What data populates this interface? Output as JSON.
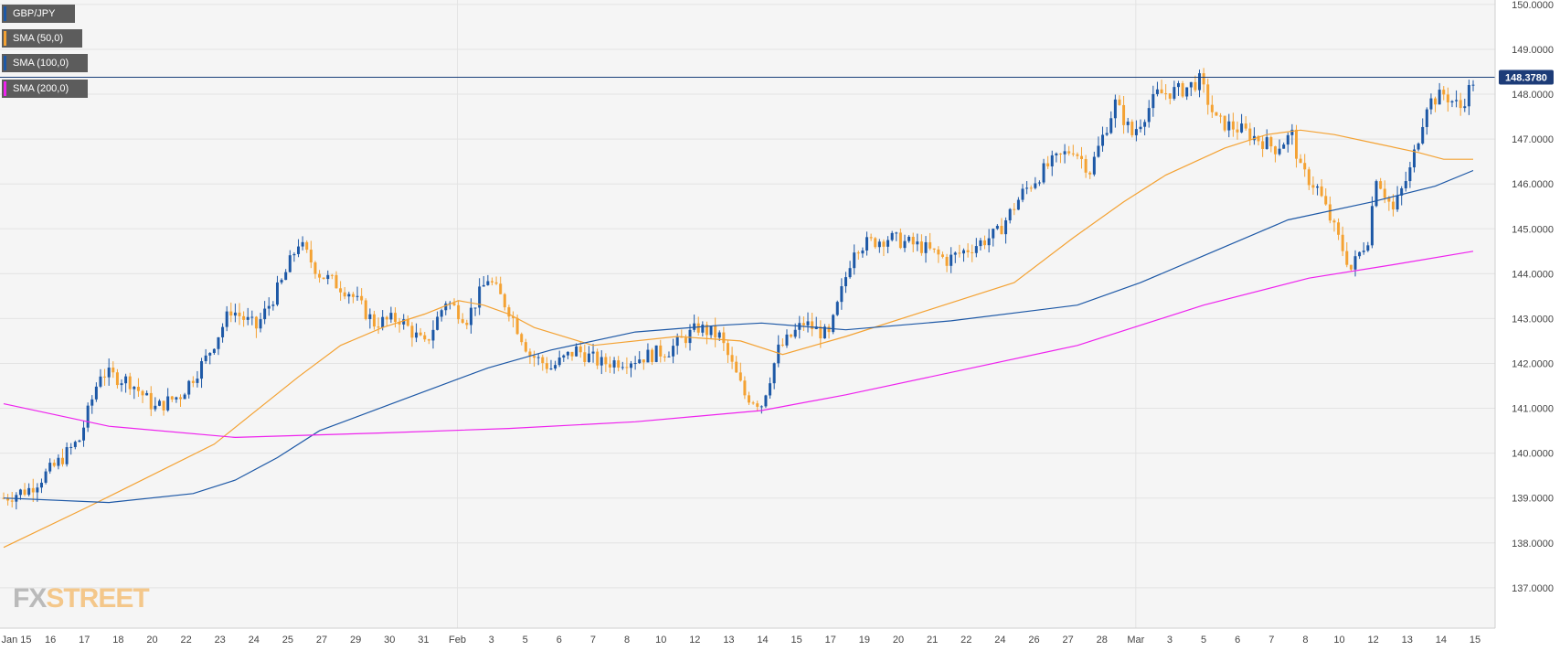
{
  "legend": {
    "symbol": "GBP/JPY",
    "sma50": "SMA (50,0)",
    "sma100": "SMA (100,0)",
    "sma200": "SMA (200,0)"
  },
  "colors": {
    "bullish": "#1d58a6",
    "bearish": "#f4a233",
    "sma50": "#f4a233",
    "sma100": "#1d58a6",
    "sma200": "#ee22ee",
    "price_line": "#1a3f7a",
    "price_label_bg": "#1d3c78"
  },
  "logo": {
    "fx": "FX",
    "street": "STREET"
  },
  "chart_data": {
    "type": "candlestick",
    "title": "",
    "x_ticks": [
      "Jan 15",
      "16",
      "17",
      "18",
      "20",
      "22",
      "23",
      "24",
      "25",
      "27",
      "29",
      "30",
      "31",
      "Feb",
      "3",
      "5",
      "6",
      "7",
      "8",
      "10",
      "12",
      "13",
      "14",
      "15",
      "17",
      "19",
      "20",
      "21",
      "22",
      "24",
      "26",
      "27",
      "28",
      "Mar",
      "3",
      "5",
      "6",
      "7",
      "8",
      "10",
      "12",
      "13",
      "14",
      "15"
    ],
    "y_ticks": [
      "150.0000",
      "149.0000",
      "148.0000",
      "147.0000",
      "146.0000",
      "145.0000",
      "144.0000",
      "143.0000",
      "142.0000",
      "141.0000",
      "140.0000",
      "139.0000",
      "138.0000",
      "137.0000"
    ],
    "ylim": [
      136.1,
      150.1
    ],
    "grid": true,
    "current_price": "148.3780",
    "ohlc_anchors": [
      [
        0,
        139.0
      ],
      [
        6,
        139.2
      ],
      [
        12,
        139.7
      ],
      [
        18,
        140.3
      ],
      [
        23,
        141.8
      ],
      [
        30,
        141.6
      ],
      [
        36,
        141.0
      ],
      [
        42,
        141.3
      ],
      [
        48,
        142.1
      ],
      [
        54,
        143.2
      ],
      [
        60,
        142.8
      ],
      [
        66,
        143.8
      ],
      [
        70,
        144.7
      ],
      [
        75,
        144.0
      ],
      [
        82,
        143.6
      ],
      [
        88,
        142.9
      ],
      [
        94,
        143.0
      ],
      [
        100,
        142.4
      ],
      [
        105,
        143.4
      ],
      [
        110,
        143.0
      ],
      [
        115,
        143.9
      ],
      [
        120,
        143.2
      ],
      [
        125,
        142.2
      ],
      [
        130,
        141.9
      ],
      [
        136,
        142.3
      ],
      [
        142,
        142.0
      ],
      [
        150,
        142.1
      ],
      [
        158,
        142.3
      ],
      [
        165,
        142.8
      ],
      [
        170,
        142.6
      ],
      [
        176,
        141.3
      ],
      [
        180,
        141.1
      ],
      [
        184,
        142.3
      ],
      [
        190,
        142.9
      ],
      [
        196,
        142.6
      ],
      [
        202,
        144.6
      ],
      [
        210,
        144.8
      ],
      [
        218,
        144.6
      ],
      [
        224,
        144.3
      ],
      [
        230,
        144.6
      ],
      [
        236,
        144.9
      ],
      [
        242,
        145.8
      ],
      [
        248,
        146.4
      ],
      [
        254,
        146.8
      ],
      [
        258,
        146.3
      ],
      [
        264,
        147.8
      ],
      [
        268,
        147.1
      ],
      [
        274,
        148.0
      ],
      [
        280,
        148.1
      ],
      [
        284,
        148.3
      ],
      [
        288,
        147.4
      ],
      [
        294,
        147.2
      ],
      [
        298,
        147.0
      ],
      [
        302,
        146.8
      ],
      [
        306,
        147.1
      ],
      [
        308,
        146.3
      ],
      [
        312,
        145.9
      ],
      [
        316,
        145.0
      ],
      [
        320,
        144.1
      ],
      [
        324,
        144.8
      ],
      [
        326,
        146.2
      ],
      [
        330,
        145.4
      ],
      [
        334,
        146.3
      ],
      [
        338,
        147.8
      ],
      [
        342,
        148.0
      ],
      [
        346,
        147.7
      ],
      [
        349,
        148.3
      ]
    ],
    "candles_count": 350,
    "series": [
      {
        "name": "SMA (50,0)",
        "type": "line",
        "values": [
          [
            0,
            137.9
          ],
          [
            20,
            138.8
          ],
          [
            50,
            140.2
          ],
          [
            70,
            141.7
          ],
          [
            80,
            142.4
          ],
          [
            90,
            142.8
          ],
          [
            100,
            143.1
          ],
          [
            108,
            143.4
          ],
          [
            114,
            143.3
          ],
          [
            120,
            143.1
          ],
          [
            126,
            142.8
          ],
          [
            140,
            142.4
          ],
          [
            160,
            142.6
          ],
          [
            175,
            142.5
          ],
          [
            185,
            142.2
          ],
          [
            200,
            142.6
          ],
          [
            220,
            143.2
          ],
          [
            240,
            143.8
          ],
          [
            254,
            144.8
          ],
          [
            266,
            145.6
          ],
          [
            276,
            146.2
          ],
          [
            290,
            146.8
          ],
          [
            300,
            147.1
          ],
          [
            308,
            147.2
          ],
          [
            316,
            147.1
          ],
          [
            326,
            146.9
          ],
          [
            336,
            146.7
          ],
          [
            342,
            146.55
          ],
          [
            349,
            146.55
          ]
        ]
      },
      {
        "name": "SMA (100,0)",
        "type": "line",
        "values": [
          [
            0,
            139.0
          ],
          [
            25,
            138.9
          ],
          [
            45,
            139.1
          ],
          [
            55,
            139.4
          ],
          [
            65,
            139.9
          ],
          [
            75,
            140.5
          ],
          [
            95,
            141.2
          ],
          [
            115,
            141.9
          ],
          [
            130,
            142.3
          ],
          [
            150,
            142.7
          ],
          [
            170,
            142.85
          ],
          [
            180,
            142.9
          ],
          [
            200,
            142.75
          ],
          [
            225,
            142.95
          ],
          [
            255,
            143.3
          ],
          [
            270,
            143.8
          ],
          [
            285,
            144.4
          ],
          [
            305,
            145.2
          ],
          [
            325,
            145.6
          ],
          [
            340,
            145.95
          ],
          [
            349,
            146.3
          ]
        ]
      },
      {
        "name": "SMA (200,0)",
        "type": "line",
        "values": [
          [
            0,
            141.1
          ],
          [
            25,
            140.6
          ],
          [
            55,
            140.35
          ],
          [
            90,
            140.45
          ],
          [
            120,
            140.55
          ],
          [
            150,
            140.7
          ],
          [
            180,
            140.95
          ],
          [
            200,
            141.3
          ],
          [
            225,
            141.8
          ],
          [
            255,
            142.4
          ],
          [
            285,
            143.3
          ],
          [
            310,
            143.9
          ],
          [
            330,
            144.2
          ],
          [
            349,
            144.5
          ]
        ]
      }
    ]
  }
}
